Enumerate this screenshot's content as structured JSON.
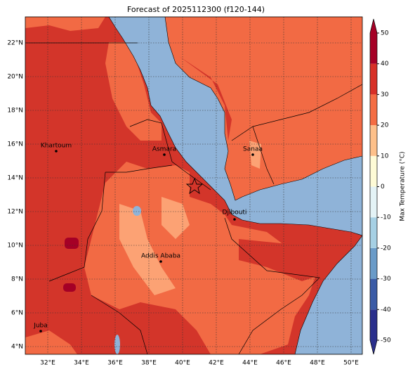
{
  "title": "Forecast of 2025112300 (f120-144)",
  "map": {
    "lon_ticks": [
      {
        "value": 32,
        "label": "32°E"
      },
      {
        "value": 34,
        "label": "34°E"
      },
      {
        "value": 36,
        "label": "36°E"
      },
      {
        "value": 38,
        "label": "38°E"
      },
      {
        "value": 40,
        "label": "40°E"
      },
      {
        "value": 42,
        "label": "42°E"
      },
      {
        "value": 44,
        "label": "44°E"
      },
      {
        "value": 46,
        "label": "46°E"
      },
      {
        "value": 48,
        "label": "48°E"
      },
      {
        "value": 50,
        "label": "50°E"
      }
    ],
    "lat_ticks": [
      {
        "value": 4,
        "label": "4°N"
      },
      {
        "value": 6,
        "label": "6°N"
      },
      {
        "value": 8,
        "label": "8°N"
      },
      {
        "value": 10,
        "label": "10°N"
      },
      {
        "value": 12,
        "label": "12°N"
      },
      {
        "value": 14,
        "label": "14°N"
      },
      {
        "value": 16,
        "label": "16°N"
      },
      {
        "value": 18,
        "label": "18°N"
      },
      {
        "value": 20,
        "label": "20°N"
      },
      {
        "value": 22,
        "label": "22°N"
      }
    ],
    "cities": [
      "Khartoum",
      "Asmara",
      "Sanaa",
      "Djibouti",
      "Addis Ababa",
      "Juba"
    ]
  },
  "colorbar": {
    "label": "Max Temperature (°C)",
    "ticks": [
      -50,
      -40,
      -30,
      -20,
      -10,
      0,
      10,
      20,
      30,
      40,
      50
    ],
    "colors": [
      "#2a2f8c",
      "#3b5ba6",
      "#6a9bc8",
      "#a6d0e4",
      "#e4f3f6",
      "#fefbd6",
      "#fdc08a",
      "#f46d43",
      "#d73027",
      "#a50026"
    ]
  }
}
